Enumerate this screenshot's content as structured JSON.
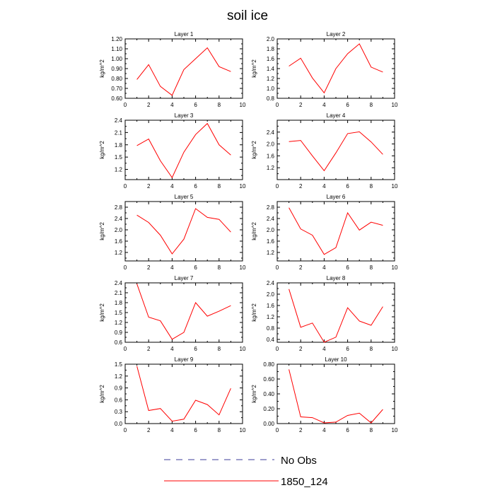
{
  "title": "soil ice",
  "chart_data": {
    "type": "line",
    "title": "soil ice",
    "ylabel": "kg/m^2",
    "legend": [
      {
        "name": "No Obs",
        "style": "dashed",
        "color": "#3b3b9a"
      },
      {
        "name": "1850_124",
        "style": "solid",
        "color": "#ff0000"
      }
    ],
    "series_color": "#ff0000",
    "x": [
      1,
      2,
      3,
      4,
      5,
      6,
      7,
      8,
      9
    ],
    "xlim": [
      0,
      10
    ],
    "xticks": [
      "0",
      "2",
      "4",
      "6",
      "8",
      "10"
    ],
    "grid": false,
    "panels": [
      {
        "title": "Layer 1",
        "ylim": [
          0.6,
          1.2
        ],
        "yticks": [
          "0.60",
          "0.70",
          "0.80",
          "0.90",
          "1.00",
          "1.10",
          "1.20"
        ],
        "values": [
          0.79,
          0.94,
          0.72,
          0.63,
          0.89,
          1.0,
          1.11,
          0.92,
          0.87
        ]
      },
      {
        "title": "Layer 2",
        "ylim": [
          0.8,
          2.0
        ],
        "yticks": [
          "0.8",
          "1.0",
          "1.2",
          "1.4",
          "1.6",
          "1.8",
          "2.0"
        ],
        "values": [
          1.45,
          1.61,
          1.21,
          0.91,
          1.4,
          1.7,
          1.9,
          1.43,
          1.33
        ]
      },
      {
        "title": "Layer 3",
        "ylim": [
          0.95,
          2.4
        ],
        "yticks": [
          "1.2",
          "1.5",
          "1.8",
          "2.1",
          "2.4"
        ],
        "values": [
          1.78,
          1.94,
          1.41,
          1.0,
          1.62,
          2.05,
          2.32,
          1.8,
          1.55
        ]
      },
      {
        "title": "Layer 4",
        "ylim": [
          0.8,
          2.8
        ],
        "yticks": [
          "1.2",
          "1.6",
          "2.0",
          "2.4"
        ],
        "values": [
          2.08,
          2.12,
          1.6,
          1.1,
          1.7,
          2.35,
          2.41,
          2.07,
          1.65
        ]
      },
      {
        "title": "Layer 5",
        "ylim": [
          0.9,
          3.0
        ],
        "yticks": [
          "1.2",
          "1.6",
          "2.0",
          "2.4",
          "2.8"
        ],
        "values": [
          2.52,
          2.26,
          1.81,
          1.15,
          1.67,
          2.75,
          2.44,
          2.37,
          1.92
        ]
      },
      {
        "title": "Layer 6",
        "ylim": [
          0.9,
          3.0
        ],
        "yticks": [
          "1.2",
          "1.6",
          "2.0",
          "2.4",
          "2.8"
        ],
        "values": [
          2.78,
          2.03,
          1.81,
          1.13,
          1.37,
          2.6,
          1.99,
          2.27,
          2.16
        ]
      },
      {
        "title": "Layer 7",
        "ylim": [
          0.6,
          2.4
        ],
        "yticks": [
          "0.6",
          "0.9",
          "1.2",
          "1.5",
          "1.8",
          "2.1",
          "2.4"
        ],
        "values": [
          2.37,
          1.36,
          1.25,
          0.69,
          0.9,
          1.8,
          1.39,
          1.54,
          1.71
        ]
      },
      {
        "title": "Layer 8",
        "ylim": [
          0.3,
          2.4
        ],
        "yticks": [
          "0.4",
          "0.8",
          "1.2",
          "1.6",
          "2.0",
          "2.4"
        ],
        "values": [
          2.18,
          0.83,
          0.98,
          0.3,
          0.48,
          1.52,
          1.05,
          0.9,
          1.56
        ]
      },
      {
        "title": "Layer 9",
        "ylim": [
          0.0,
          1.5
        ],
        "yticks": [
          "0.0",
          "0.3",
          "0.6",
          "0.9",
          "1.2",
          "1.5"
        ],
        "values": [
          1.45,
          0.33,
          0.38,
          0.06,
          0.11,
          0.59,
          0.48,
          0.22,
          0.89
        ]
      },
      {
        "title": "Layer 10",
        "ylim": [
          0.0,
          0.8
        ],
        "yticks": [
          "0.00",
          "0.20",
          "0.40",
          "0.60",
          "0.80"
        ],
        "values": [
          0.73,
          0.09,
          0.08,
          0.01,
          0.02,
          0.11,
          0.14,
          0.01,
          0.19
        ]
      }
    ]
  }
}
